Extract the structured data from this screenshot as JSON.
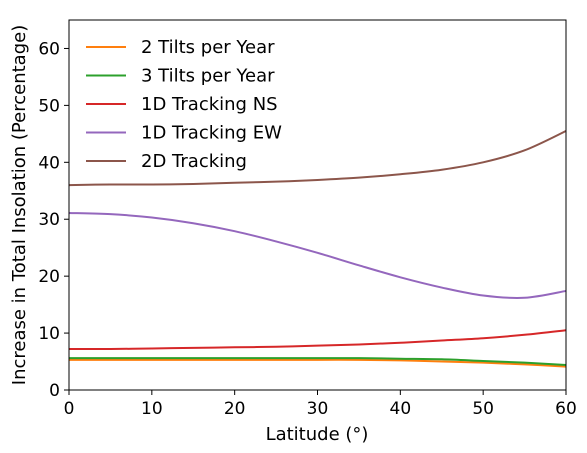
{
  "chart_data": {
    "type": "line",
    "xlabel": "Latitude (°)",
    "ylabel": "Increase in Total Insolation (Percentage)",
    "xlim": [
      0,
      60
    ],
    "ylim": [
      0,
      65
    ],
    "xticks": [
      "0",
      "10",
      "20",
      "30",
      "40",
      "50",
      "60"
    ],
    "yticks": [
      "0",
      "10",
      "20",
      "30",
      "40",
      "50",
      "60"
    ],
    "grid": false,
    "legend_position": "top-left",
    "x": [
      0,
      5,
      10,
      15,
      20,
      25,
      30,
      35,
      40,
      45,
      50,
      55,
      60
    ],
    "series": [
      {
        "name": "2 Tilts per Year",
        "color": "#ff7f0e",
        "values": [
          5.3,
          5.3,
          5.3,
          5.3,
          5.3,
          5.3,
          5.3,
          5.3,
          5.2,
          5.0,
          4.8,
          4.5,
          4.1
        ]
      },
      {
        "name": "3 Tilts per Year",
        "color": "#2ca02c",
        "values": [
          5.6,
          5.6,
          5.6,
          5.6,
          5.6,
          5.6,
          5.6,
          5.6,
          5.5,
          5.4,
          5.1,
          4.8,
          4.4
        ]
      },
      {
        "name": "1D Tracking NS",
        "color": "#d62728",
        "values": [
          7.2,
          7.2,
          7.3,
          7.4,
          7.5,
          7.6,
          7.8,
          8.0,
          8.3,
          8.7,
          9.1,
          9.7,
          10.5
        ]
      },
      {
        "name": "1D Tracking EW",
        "color": "#9467bd",
        "values": [
          31.1,
          30.9,
          30.3,
          29.3,
          27.9,
          26.1,
          24.1,
          21.9,
          19.8,
          18.0,
          16.6,
          16.2,
          17.4
        ]
      },
      {
        "name": "2D Tracking",
        "color": "#8c564b",
        "values": [
          36.0,
          36.1,
          36.1,
          36.2,
          36.4,
          36.6,
          36.9,
          37.3,
          37.9,
          38.7,
          40.0,
          42.1,
          45.5
        ]
      }
    ]
  }
}
